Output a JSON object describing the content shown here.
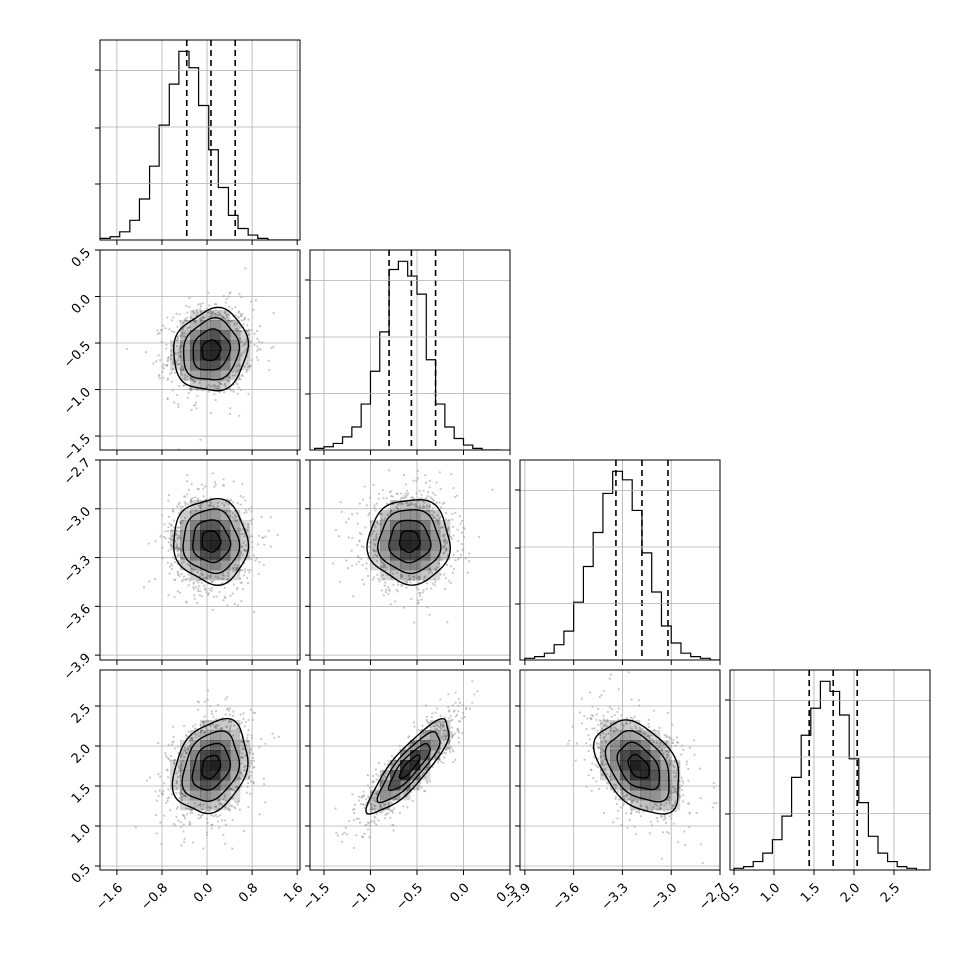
{
  "chart_data": {
    "type": "corner",
    "grid": true,
    "parameters": [
      {
        "range": [
          -1.9,
          1.65
        ],
        "ticks": [
          -1.6,
          -0.8,
          0.0,
          0.8,
          1.6
        ],
        "tick_labels": [
          "−1.6",
          "−0.8",
          "0.0",
          "0.8",
          "1.6"
        ],
        "mean": 0.07,
        "sd": 0.33,
        "quantiles": [
          -0.36,
          0.07,
          0.5
        ],
        "hist_edges": [
          -1.9,
          -1.72,
          -1.55,
          -1.37,
          -1.2,
          -1.02,
          -0.85,
          -0.67,
          -0.5,
          -0.32,
          -0.15,
          0.03,
          0.2,
          0.38,
          0.55,
          0.73,
          0.9,
          1.08,
          1.25,
          1.43,
          1.6
        ],
        "hist_counts": [
          1,
          2,
          5,
          12,
          25,
          45,
          70,
          95,
          115,
          105,
          82,
          55,
          32,
          15,
          7,
          3,
          1,
          0,
          0,
          0
        ]
      },
      {
        "range": [
          -1.65,
          0.5
        ],
        "ticks": [
          -1.5,
          -1.0,
          -0.5,
          0.0,
          0.5
        ],
        "tick_labels": [
          "−1.5",
          "−1.0",
          "−0.5",
          "0.0",
          "0.5"
        ],
        "mean": -0.58,
        "sd": 0.22,
        "quantiles": [
          -0.8,
          -0.56,
          -0.3
        ],
        "hist_edges": [
          -1.6,
          -1.5,
          -1.4,
          -1.3,
          -1.2,
          -1.1,
          -1.0,
          -0.9,
          -0.8,
          -0.7,
          -0.6,
          -0.5,
          -0.4,
          -0.3,
          -0.2,
          -0.1,
          0.0,
          0.1,
          0.2,
          0.3,
          0.4
        ],
        "hist_counts": [
          1,
          2,
          4,
          8,
          14,
          28,
          48,
          72,
          110,
          115,
          106,
          95,
          55,
          28,
          14,
          7,
          3,
          1,
          0,
          0
        ]
      },
      {
        "range": [
          -3.93,
          -2.7
        ],
        "ticks": [
          -3.9,
          -3.6,
          -3.3,
          -3.0,
          -2.7
        ],
        "tick_labels": [
          "−3.9",
          "−3.6",
          "−3.3",
          "−3.0",
          "−2.7"
        ],
        "mean": -3.2,
        "sd": 0.13,
        "quantiles": [
          -3.34,
          -3.18,
          -3.02
        ],
        "hist_edges": [
          -3.9,
          -3.84,
          -3.78,
          -3.72,
          -3.66,
          -3.6,
          -3.54,
          -3.48,
          -3.42,
          -3.36,
          -3.3,
          -3.24,
          -3.18,
          -3.12,
          -3.06,
          -3.0,
          -2.94,
          -2.88,
          -2.82,
          -2.76,
          -2.7
        ],
        "hist_counts": [
          1,
          2,
          4,
          9,
          17,
          34,
          55,
          75,
          98,
          111,
          106,
          88,
          63,
          40,
          20,
          10,
          4,
          2,
          1,
          0
        ]
      },
      {
        "range": [
          0.45,
          2.95
        ],
        "ticks": [
          0.5,
          1.0,
          1.5,
          2.0,
          2.5
        ],
        "tick_labels": [
          "0.5",
          "1.0",
          "1.5",
          "2.0",
          "2.5"
        ],
        "mean": 1.74,
        "sd": 0.29,
        "quantiles": [
          1.44,
          1.74,
          2.04
        ],
        "hist_edges": [
          0.5,
          0.62,
          0.74,
          0.86,
          0.98,
          1.1,
          1.22,
          1.34,
          1.46,
          1.58,
          1.7,
          1.82,
          1.94,
          2.06,
          2.18,
          2.3,
          2.42,
          2.54,
          2.66,
          2.78,
          2.9
        ],
        "hist_counts": [
          1,
          2,
          5,
          10,
          18,
          32,
          55,
          80,
          96,
          112,
          106,
          92,
          66,
          40,
          20,
          10,
          5,
          2,
          1,
          0
        ]
      }
    ],
    "correlations": [
      [
        1.0,
        0.1,
        -0.05,
        0.25
      ],
      [
        0.1,
        1.0,
        0.0,
        0.85
      ],
      [
        -0.05,
        0.0,
        1.0,
        -0.4
      ],
      [
        0.25,
        0.85,
        -0.4,
        1.0
      ]
    ],
    "contour_levels_sigma": [
      0.5,
      1.0,
      1.5,
      2.0
    ],
    "colors": {
      "density": "#000000",
      "scatter": "#9a9a9a",
      "grid": "#b0b0b0"
    }
  }
}
